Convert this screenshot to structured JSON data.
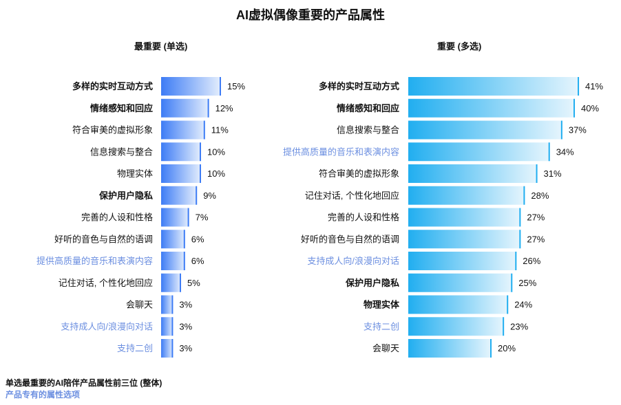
{
  "title": "AI虚拟偶像重要的产品属性",
  "colors": {
    "left_bar_dark": "#3d7cf5",
    "left_bar_light": "#e4eefd",
    "right_bar_dark": "#21aef0",
    "right_bar_light": "#e6f5fd",
    "highlight_label": "#6c8fe0",
    "normal_label": "#111111"
  },
  "footnotes": {
    "line1": "单选最重要的AI陪伴产品属性前三位 (整体)",
    "line2": "产品专有的属性选项"
  },
  "chart_data": [
    {
      "type": "bar",
      "orientation": "horizontal",
      "panel": "left",
      "title": "最重要 (单选)",
      "categories": [
        "多样的实时互动方式",
        "情绪感知和回应",
        "符合审美的虚拟形象",
        "信息搜索与整合",
        "物理实体",
        "保护用户隐私",
        "完善的人设和性格",
        "好听的音色与自然的语调",
        "提供高质量的音乐和表演内容",
        "记住对话, 个性化地回应",
        "会聊天",
        "支持成人向/浪漫向对话",
        "支持二创"
      ],
      "values": [
        15,
        12,
        11,
        10,
        10,
        9,
        7,
        6,
        6,
        5,
        3,
        3,
        3
      ],
      "value_labels": [
        "15%",
        "12%",
        "11%",
        "10%",
        "10%",
        "9%",
        "7%",
        "6%",
        "6%",
        "5%",
        "3%",
        "3%",
        "3%"
      ],
      "bold": [
        true,
        true,
        false,
        false,
        false,
        true,
        false,
        false,
        false,
        false,
        false,
        false,
        false
      ],
      "product_specific": [
        false,
        false,
        false,
        false,
        false,
        false,
        false,
        false,
        true,
        false,
        false,
        true,
        true
      ],
      "unit": "%"
    },
    {
      "type": "bar",
      "orientation": "horizontal",
      "panel": "right",
      "title": "重要 (多选)",
      "categories": [
        "多样的实时互动方式",
        "情绪感知和回应",
        "信息搜索与整合",
        "提供高质量的音乐和表演内容",
        "符合审美的虚拟形象",
        "记住对话, 个性化地回应",
        "完善的人设和性格",
        "好听的音色与自然的语调",
        "支持成人向/浪漫向对话",
        "保护用户隐私",
        "物理实体",
        "支持二创",
        "会聊天"
      ],
      "values": [
        41,
        40,
        37,
        34,
        31,
        28,
        27,
        27,
        26,
        25,
        24,
        23,
        20
      ],
      "value_labels": [
        "41%",
        "40%",
        "37%",
        "34%",
        "31%",
        "28%",
        "27%",
        "27%",
        "26%",
        "25%",
        "24%",
        "23%",
        "20%"
      ],
      "bold": [
        true,
        true,
        false,
        false,
        false,
        false,
        false,
        false,
        false,
        true,
        true,
        false,
        false
      ],
      "product_specific": [
        false,
        false,
        false,
        true,
        false,
        false,
        false,
        false,
        true,
        false,
        false,
        true,
        false
      ],
      "unit": "%"
    }
  ]
}
